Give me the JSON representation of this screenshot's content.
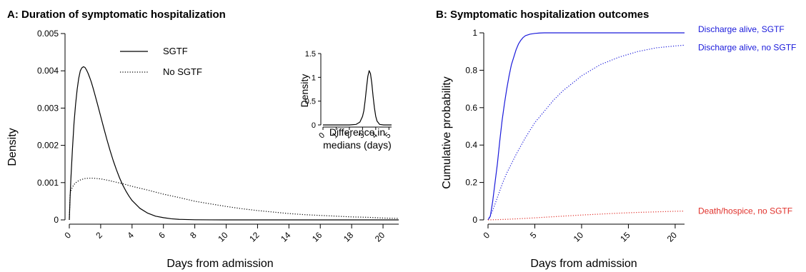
{
  "chart_data": [
    {
      "panel": "A",
      "type": "line",
      "title": "A: Duration of symptomatic hospitalization",
      "xlabel": "Days from admission",
      "ylabel": "Density",
      "xlim": [
        0,
        21
      ],
      "ylim": [
        0,
        0.005
      ],
      "xticks": [
        "0",
        "2",
        "4",
        "6",
        "8",
        "10",
        "12",
        "14",
        "16",
        "18",
        "20"
      ],
      "yticks": [
        "0",
        "0.001",
        "0.002",
        "0.003",
        "0.004",
        "0.005"
      ],
      "legend": {
        "placement": "top-center",
        "entries": [
          {
            "label": "SGTF",
            "style": "solid"
          },
          {
            "label": "No SGTF",
            "style": "dotted"
          }
        ]
      },
      "series": [
        {
          "name": "SGTF",
          "style": "solid",
          "color": "#000000",
          "x": [
            0,
            0.05,
            0.1,
            0.2,
            0.3,
            0.4,
            0.5,
            0.6,
            0.7,
            0.8,
            0.9,
            1.0,
            1.1,
            1.2,
            1.3,
            1.4,
            1.5,
            1.6,
            1.8,
            2.0,
            2.2,
            2.4,
            2.6,
            2.8,
            3.0,
            3.2,
            3.4,
            3.6,
            3.8,
            4.0,
            4.5,
            5.0,
            5.5,
            6.0,
            6.5,
            7.0,
            8.0,
            9.0,
            10,
            12,
            14,
            16,
            18,
            20,
            21
          ],
          "y": [
            0,
            0.0006,
            0.0011,
            0.0019,
            0.0026,
            0.0031,
            0.0035,
            0.0038,
            0.004,
            0.00408,
            0.00411,
            0.00409,
            0.00402,
            0.00393,
            0.00382,
            0.0037,
            0.00356,
            0.00341,
            0.0031,
            0.00278,
            0.00246,
            0.00215,
            0.00186,
            0.00159,
            0.00135,
            0.00113,
            0.00094,
            0.00078,
            0.00064,
            0.00052,
            0.00031,
            0.00018,
            0.0001,
            6e-05,
            3e-05,
            1.5e-05,
            4e-06,
            1e-06,
            0,
            0,
            0,
            0,
            0,
            0,
            0
          ]
        },
        {
          "name": "No SGTF",
          "style": "dotted",
          "color": "#000000",
          "x": [
            0,
            0.05,
            0.1,
            0.2,
            0.3,
            0.5,
            0.75,
            1.0,
            1.25,
            1.5,
            1.75,
            2.0,
            2.5,
            3.0,
            3.5,
            4.0,
            5,
            6,
            7,
            8,
            9,
            10,
            11,
            12,
            13,
            14,
            15,
            16,
            17,
            18,
            19,
            20,
            21
          ],
          "y": [
            0,
            0.00068,
            0.00078,
            0.00088,
            0.00095,
            0.00103,
            0.00108,
            0.00111,
            0.00112,
            0.00112,
            0.00111,
            0.0011,
            0.00106,
            0.00101,
            0.00096,
            0.0009,
            0.0008,
            0.00069,
            0.0006,
            0.0005,
            0.00043,
            0.00036,
            0.0003,
            0.00025,
            0.00021,
            0.00017,
            0.00014,
            0.00012,
            0.0001,
            8e-05,
            7e-05,
            5e-05,
            4e-05
          ]
        }
      ],
      "inset": {
        "type": "line",
        "xlabel": "Difference in medians (days)",
        "xlabel_lines": [
          "Difference in",
          "medians (days)"
        ],
        "ylabel": "Density",
        "xlim": [
          0,
          5.2
        ],
        "ylim": [
          0,
          1.5
        ],
        "xticks": [
          "0",
          "1",
          "2",
          "3",
          "4",
          "5"
        ],
        "yticks": [
          "0",
          "0.5",
          "1",
          "1.5"
        ],
        "series": [
          {
            "style": "solid",
            "color": "#000000",
            "x": [
              0,
              1.0,
              2.0,
              2.5,
              2.8,
              3.0,
              3.1,
              3.2,
              3.3,
              3.4,
              3.5,
              3.6,
              3.7,
              3.8,
              3.9,
              4.0,
              4.1,
              4.3,
              4.6,
              5.0,
              5.2
            ],
            "y": [
              0,
              0,
              0,
              0.01,
              0.06,
              0.18,
              0.3,
              0.52,
              0.78,
              1.02,
              1.14,
              1.08,
              0.88,
              0.6,
              0.36,
              0.18,
              0.08,
              0.01,
              0,
              0,
              0
            ]
          }
        ]
      }
    },
    {
      "panel": "B",
      "type": "line",
      "title": "B: Symptomatic hospitalization outcomes",
      "xlabel": "Days from admission",
      "ylabel": "Cumulative probability",
      "xlim": [
        0,
        21
      ],
      "ylim": [
        0,
        1
      ],
      "xticks": [
        "0",
        "5",
        "10",
        "15",
        "20"
      ],
      "yticks": [
        "0",
        "0.2",
        "0.4",
        "0.6",
        "0.8",
        "1"
      ],
      "series": [
        {
          "name": "Discharge alive, SGTF",
          "style": "solid",
          "color": "#1a1adb",
          "x": [
            0,
            0.25,
            0.5,
            0.75,
            1.0,
            1.25,
            1.5,
            1.75,
            2.0,
            2.25,
            2.5,
            2.75,
            3.0,
            3.25,
            3.5,
            3.75,
            4.0,
            4.5,
            5.0,
            5.5,
            6.0,
            7,
            8,
            10,
            15,
            21
          ],
          "y": [
            0,
            0.02,
            0.1,
            0.2,
            0.3,
            0.42,
            0.53,
            0.62,
            0.7,
            0.77,
            0.83,
            0.87,
            0.91,
            0.94,
            0.96,
            0.975,
            0.985,
            0.993,
            0.997,
            0.999,
            1.0,
            1.0,
            1.0,
            1.0,
            1.0,
            1.0
          ]
        },
        {
          "name": "Discharge alive, no SGTF",
          "style": "dotted",
          "color": "#1a1adb",
          "x": [
            0,
            0.5,
            1,
            1.5,
            2,
            3,
            4,
            5,
            6,
            7,
            8,
            9,
            10,
            11,
            12,
            13,
            14,
            15,
            16,
            17,
            18,
            19,
            20,
            21
          ],
          "y": [
            0,
            0.05,
            0.12,
            0.19,
            0.25,
            0.35,
            0.44,
            0.52,
            0.58,
            0.64,
            0.69,
            0.73,
            0.77,
            0.8,
            0.83,
            0.85,
            0.87,
            0.885,
            0.9,
            0.91,
            0.92,
            0.925,
            0.93,
            0.934
          ]
        },
        {
          "name": "Death/hospice, no SGTF",
          "style": "dotted",
          "color": "#e0302a",
          "x": [
            0,
            2,
            4,
            6,
            8,
            10,
            12,
            14,
            16,
            18,
            20,
            21
          ],
          "y": [
            0,
            0.003,
            0.008,
            0.014,
            0.02,
            0.026,
            0.031,
            0.036,
            0.04,
            0.043,
            0.046,
            0.047
          ]
        }
      ],
      "annotations": [
        {
          "text": "Discharge alive, SGTF",
          "color": "#1a1adb",
          "y": 1.0
        },
        {
          "text": "Discharge alive, no SGTF",
          "color": "#1a1adb",
          "y": 0.934
        },
        {
          "text": "Death/hospice, no SGTF",
          "color": "#e0302a",
          "y": 0.047
        }
      ]
    }
  ]
}
